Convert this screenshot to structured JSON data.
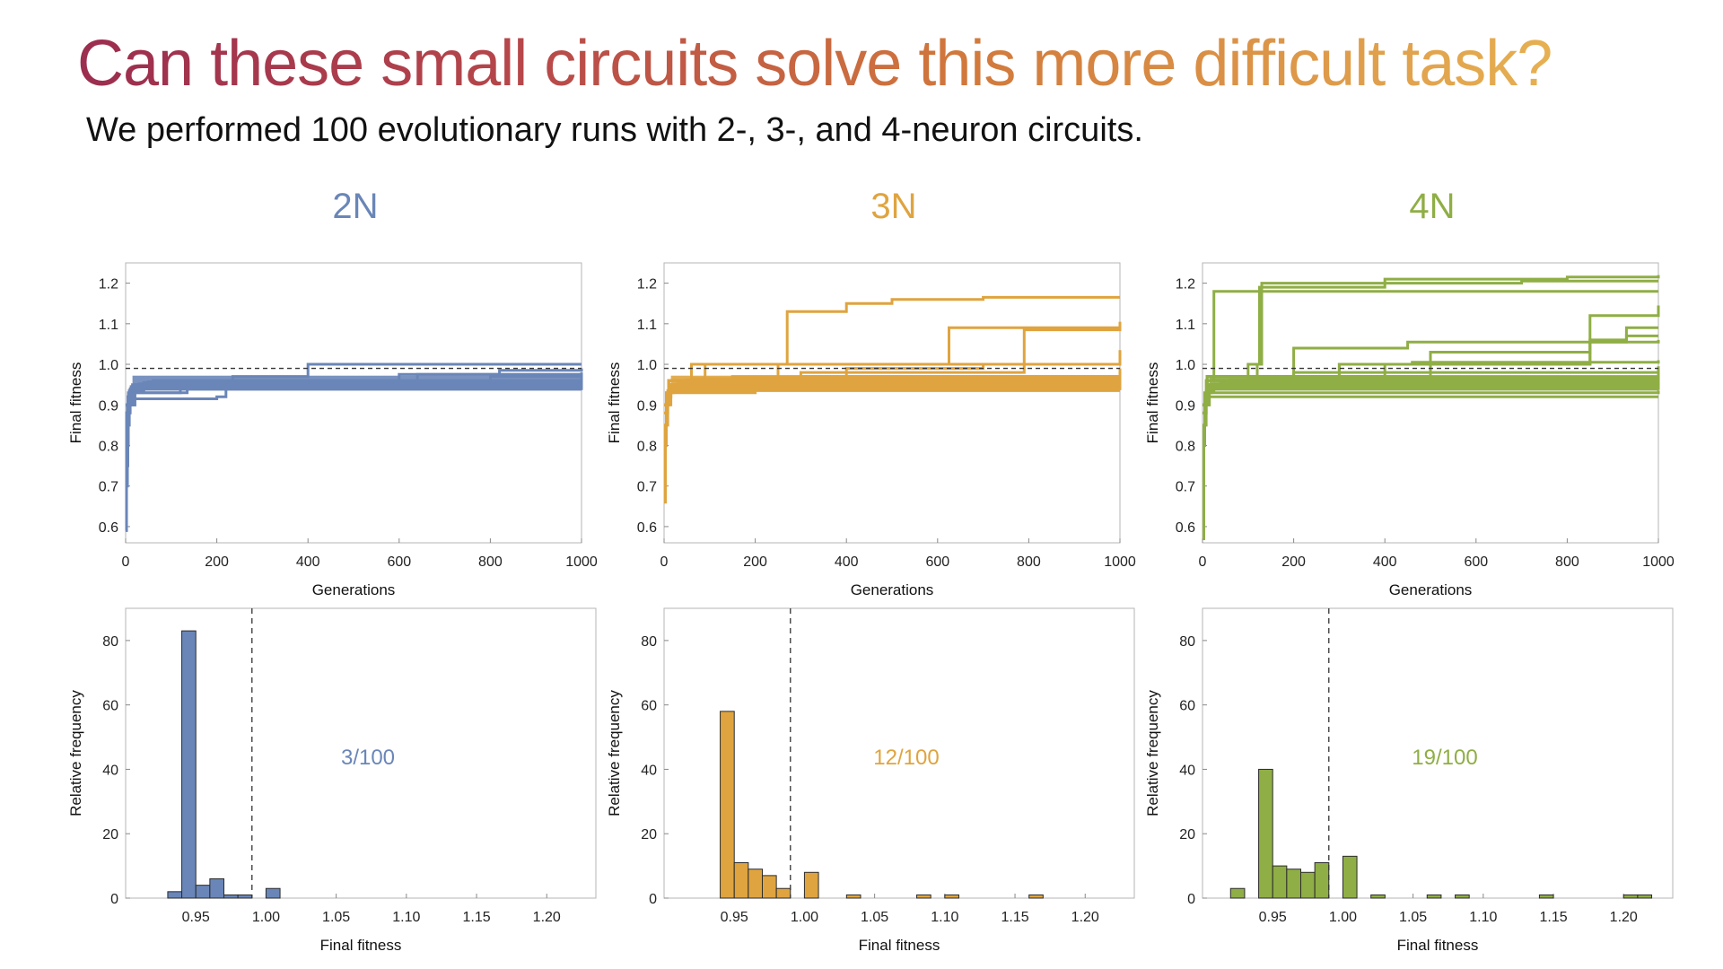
{
  "slide": {
    "title": "Can these small circuits solve this more difficult task?",
    "subtitle": "We performed 100 evolutionary runs with 2-, 3-, and 4-neuron circuits."
  },
  "colors": {
    "2N": "#6a86b8",
    "3N": "#dfa43f",
    "4N": "#8fae45"
  },
  "chart_data": [
    {
      "type": "line",
      "panel": "2N",
      "label": "2N",
      "xlabel": "Generations",
      "ylabel": "Final fitness",
      "xlim": [
        0,
        1000
      ],
      "ylim": [
        0.56,
        1.25
      ],
      "xticks": [
        0,
        200,
        400,
        600,
        800,
        1000
      ],
      "yticks": [
        0.6,
        0.7,
        0.8,
        0.9,
        1.0,
        1.1,
        1.2
      ],
      "threshold": 0.99,
      "series": [
        {
          "x": [
            0,
            2,
            5,
            8,
            12,
            1000
          ],
          "y": [
            0.59,
            0.88,
            0.92,
            0.93,
            0.94,
            0.94
          ]
        },
        {
          "x": [
            0,
            4,
            10,
            20,
            1000
          ],
          "y": [
            0.7,
            0.9,
            0.935,
            0.945,
            0.95
          ]
        },
        {
          "x": [
            0,
            5,
            15,
            40,
            1000
          ],
          "y": [
            0.75,
            0.92,
            0.94,
            0.948,
            0.955
          ]
        },
        {
          "x": [
            0,
            6,
            20,
            60,
            1000
          ],
          "y": [
            0.8,
            0.93,
            0.945,
            0.95,
            0.96
          ]
        },
        {
          "x": [
            0,
            8,
            30,
            1000
          ],
          "y": [
            0.85,
            0.935,
            0.952,
            0.952
          ]
        },
        {
          "x": [
            0,
            10,
            40,
            1000
          ],
          "y": [
            0.88,
            0.94,
            0.955,
            0.958
          ]
        },
        {
          "x": [
            0,
            12,
            50,
            1000
          ],
          "y": [
            0.9,
            0.945,
            0.957,
            0.962
          ]
        },
        {
          "x": [
            0,
            15,
            60,
            1000
          ],
          "y": [
            0.9,
            0.945,
            0.96,
            0.965
          ]
        },
        {
          "x": [
            0,
            20,
            130,
            1000
          ],
          "y": [
            0.9,
            0.94,
            0.95,
            0.97
          ]
        },
        {
          "x": [
            0,
            8,
            40,
            1000
          ],
          "y": [
            0.88,
            0.935,
            0.945,
            0.945
          ]
        },
        {
          "x": [
            0,
            10,
            120,
            1000
          ],
          "y": [
            0.9,
            0.93,
            0.94,
            0.94
          ]
        },
        {
          "x": [
            0,
            10,
            200,
            220,
            1000
          ],
          "y": [
            0.9,
            0.915,
            0.92,
            0.95,
            0.958
          ]
        },
        {
          "x": [
            0,
            10,
            135,
            1000
          ],
          "y": [
            0.9,
            0.93,
            0.94,
            0.962
          ]
        },
        {
          "x": [
            0,
            20,
            235,
            400,
            1000
          ],
          "y": [
            0.9,
            0.95,
            0.97,
            1.0,
            1.0
          ]
        },
        {
          "x": [
            0,
            20,
            600,
            1000
          ],
          "y": [
            0.9,
            0.95,
            0.975,
            0.98
          ]
        },
        {
          "x": [
            0,
            20,
            640,
            820,
            1000
          ],
          "y": [
            0.9,
            0.95,
            0.975,
            0.985,
            0.99
          ]
        },
        {
          "x": [
            0,
            15,
            800,
            1000
          ],
          "y": [
            0.9,
            0.95,
            0.97,
            0.975
          ]
        }
      ]
    },
    {
      "type": "line",
      "panel": "3N",
      "label": "3N",
      "xlabel": "Generations",
      "ylabel": "Final fitness",
      "xlim": [
        0,
        1000
      ],
      "ylim": [
        0.56,
        1.25
      ],
      "xticks": [
        0,
        200,
        400,
        600,
        800,
        1000
      ],
      "yticks": [
        0.6,
        0.7,
        0.8,
        0.9,
        1.0,
        1.1,
        1.2
      ],
      "threshold": 0.99,
      "series": [
        {
          "x": [
            0,
            3,
            8,
            15,
            1000
          ],
          "y": [
            0.66,
            0.85,
            0.92,
            0.935,
            0.935
          ]
        },
        {
          "x": [
            0,
            5,
            15,
            1000
          ],
          "y": [
            0.8,
            0.92,
            0.94,
            0.945
          ]
        },
        {
          "x": [
            0,
            5,
            20,
            1000
          ],
          "y": [
            0.85,
            0.93,
            0.945,
            0.95
          ]
        },
        {
          "x": [
            0,
            8,
            25,
            1000
          ],
          "y": [
            0.88,
            0.935,
            0.95,
            0.955
          ]
        },
        {
          "x": [
            0,
            10,
            30,
            1000
          ],
          "y": [
            0.9,
            0.94,
            0.955,
            0.96
          ]
        },
        {
          "x": [
            0,
            10,
            40,
            1000
          ],
          "y": [
            0.9,
            0.945,
            0.96,
            0.965
          ]
        },
        {
          "x": [
            0,
            12,
            50,
            1000
          ],
          "y": [
            0.9,
            0.95,
            0.962,
            0.97
          ]
        },
        {
          "x": [
            0,
            15,
            60,
            1000
          ],
          "y": [
            0.9,
            0.95,
            0.965,
            0.975
          ]
        },
        {
          "x": [
            0,
            10,
            80,
            1000
          ],
          "y": [
            0.9,
            0.945,
            0.96,
            0.98
          ]
        },
        {
          "x": [
            0,
            10,
            60,
            265,
            270,
            400,
            500,
            700,
            1000
          ],
          "y": [
            0.9,
            0.96,
            1.0,
            1.0,
            1.13,
            1.15,
            1.16,
            1.165,
            1.165
          ]
        },
        {
          "x": [
            0,
            10,
            250,
            625,
            1000
          ],
          "y": [
            0.9,
            0.96,
            1.0,
            1.09,
            1.09
          ]
        },
        {
          "x": [
            0,
            10,
            300,
            790,
            1000
          ],
          "y": [
            0.9,
            0.96,
            0.98,
            1.085,
            1.105
          ]
        },
        {
          "x": [
            0,
            10,
            400,
            700,
            1000
          ],
          "y": [
            0.9,
            0.96,
            0.99,
            1.0,
            1.035
          ]
        },
        {
          "x": [
            0,
            10,
            90,
            1000
          ],
          "y": [
            0.9,
            0.96,
            1.0,
            1.005
          ]
        },
        {
          "x": [
            0,
            5,
            200,
            1000
          ],
          "y": [
            0.85,
            0.93,
            0.94,
            0.95
          ]
        },
        {
          "x": [
            0,
            10,
            300,
            1000
          ],
          "y": [
            0.9,
            0.95,
            0.97,
            0.985
          ]
        },
        {
          "x": [
            0,
            10,
            150,
            1000
          ],
          "y": [
            0.9,
            0.96,
            0.97,
            0.99
          ]
        }
      ]
    },
    {
      "type": "line",
      "panel": "4N",
      "label": "4N",
      "xlabel": "Generations",
      "ylabel": "Final fitness",
      "xlim": [
        0,
        1000
      ],
      "ylim": [
        0.56,
        1.25
      ],
      "xticks": [
        0,
        200,
        400,
        600,
        800,
        1000
      ],
      "yticks": [
        0.6,
        0.7,
        0.8,
        0.9,
        1.0,
        1.1,
        1.2
      ],
      "threshold": 0.99,
      "series": [
        {
          "x": [
            0,
            3,
            8,
            15,
            1000
          ],
          "y": [
            0.57,
            0.85,
            0.9,
            0.92,
            0.92
          ]
        },
        {
          "x": [
            0,
            5,
            15,
            1000
          ],
          "y": [
            0.8,
            0.92,
            0.93,
            0.935
          ]
        },
        {
          "x": [
            0,
            5,
            20,
            1000
          ],
          "y": [
            0.85,
            0.93,
            0.94,
            0.945
          ]
        },
        {
          "x": [
            0,
            8,
            25,
            1000
          ],
          "y": [
            0.88,
            0.935,
            0.945,
            0.95
          ]
        },
        {
          "x": [
            0,
            10,
            30,
            1000
          ],
          "y": [
            0.9,
            0.94,
            0.95,
            0.955
          ]
        },
        {
          "x": [
            0,
            10,
            40,
            1000
          ],
          "y": [
            0.9,
            0.945,
            0.955,
            0.96
          ]
        },
        {
          "x": [
            0,
            12,
            50,
            1000
          ],
          "y": [
            0.9,
            0.95,
            0.96,
            0.965
          ]
        },
        {
          "x": [
            0,
            15,
            60,
            1000
          ],
          "y": [
            0.9,
            0.95,
            0.962,
            0.97
          ]
        },
        {
          "x": [
            0,
            10,
            80,
            1000
          ],
          "y": [
            0.9,
            0.945,
            0.96,
            0.975
          ]
        },
        {
          "x": [
            0,
            10,
            100,
            1000
          ],
          "y": [
            0.9,
            0.945,
            0.965,
            0.98
          ]
        },
        {
          "x": [
            0,
            10,
            120,
            1000
          ],
          "y": [
            0.9,
            0.95,
            0.97,
            0.985
          ]
        },
        {
          "x": [
            0,
            8,
            25,
            1000
          ],
          "y": [
            0.88,
            0.96,
            1.18,
            1.18
          ]
        },
        {
          "x": [
            0,
            10,
            120,
            125,
            400,
            700,
            1000
          ],
          "y": [
            0.9,
            0.96,
            1.0,
            1.19,
            1.2,
            1.205,
            1.205
          ]
        },
        {
          "x": [
            0,
            10,
            100,
            130,
            400,
            800,
            1000
          ],
          "y": [
            0.9,
            0.96,
            1.0,
            1.2,
            1.21,
            1.215,
            1.22
          ]
        },
        {
          "x": [
            0,
            10,
            400,
            850,
            1000
          ],
          "y": [
            0.9,
            0.97,
            1.0,
            1.12,
            1.145
          ]
        },
        {
          "x": [
            0,
            10,
            300,
            850,
            930,
            1000
          ],
          "y": [
            0.9,
            0.97,
            1.0,
            1.06,
            1.09,
            1.09
          ]
        },
        {
          "x": [
            0,
            10,
            500,
            850,
            930,
            1000
          ],
          "y": [
            0.9,
            0.97,
            1.03,
            1.055,
            1.07,
            1.07
          ]
        },
        {
          "x": [
            0,
            10,
            200,
            450,
            1000
          ],
          "y": [
            0.9,
            0.97,
            1.04,
            1.055,
            1.06
          ]
        },
        {
          "x": [
            0,
            10,
            300,
            460,
            1000
          ],
          "y": [
            0.9,
            0.97,
            1.0,
            1.005,
            1.01
          ]
        },
        {
          "x": [
            0,
            10,
            200,
            1000
          ],
          "y": [
            0.9,
            0.96,
            0.98,
            0.995
          ]
        }
      ]
    },
    {
      "type": "bar",
      "panel": "2N",
      "annotation": "3/100",
      "xlabel": "Final fitness",
      "ylabel": "Relative frequency",
      "xlim": [
        0.9,
        1.235
      ],
      "ylim": [
        0,
        90
      ],
      "xticks": [
        0.95,
        1.0,
        1.05,
        1.1,
        1.15,
        1.2
      ],
      "yticks": [
        0,
        20,
        40,
        60,
        80
      ],
      "threshold": 0.99,
      "bin_width": 0.01,
      "bin_starts": [
        0.93,
        0.94,
        0.95,
        0.96,
        0.97,
        0.98,
        1.0
      ],
      "values": [
        2,
        83,
        4,
        6,
        1,
        1,
        3
      ]
    },
    {
      "type": "bar",
      "panel": "3N",
      "annotation": "12/100",
      "xlabel": "Final fitness",
      "ylabel": "Relative frequency",
      "xlim": [
        0.9,
        1.235
      ],
      "ylim": [
        0,
        90
      ],
      "xticks": [
        0.95,
        1.0,
        1.05,
        1.1,
        1.15,
        1.2
      ],
      "yticks": [
        0,
        20,
        40,
        60,
        80
      ],
      "threshold": 0.99,
      "bin_width": 0.01,
      "bin_starts": [
        0.94,
        0.95,
        0.96,
        0.97,
        0.98,
        1.0,
        1.03,
        1.08,
        1.1,
        1.16
      ],
      "values": [
        58,
        11,
        9,
        7,
        3,
        8,
        1,
        1,
        1,
        1
      ]
    },
    {
      "type": "bar",
      "panel": "4N",
      "annotation": "19/100",
      "xlabel": "Final fitness",
      "ylabel": "Relative frequency",
      "xlim": [
        0.9,
        1.235
      ],
      "ylim": [
        0,
        90
      ],
      "xticks": [
        0.95,
        1.0,
        1.05,
        1.1,
        1.15,
        1.2
      ],
      "yticks": [
        0,
        20,
        40,
        60,
        80
      ],
      "threshold": 0.99,
      "bin_width": 0.01,
      "bin_starts": [
        0.92,
        0.94,
        0.95,
        0.96,
        0.97,
        0.98,
        1.0,
        1.02,
        1.06,
        1.08,
        1.14,
        1.2,
        1.21
      ],
      "values": [
        3,
        40,
        10,
        9,
        8,
        11,
        13,
        1,
        1,
        1,
        1,
        1,
        1
      ]
    }
  ]
}
